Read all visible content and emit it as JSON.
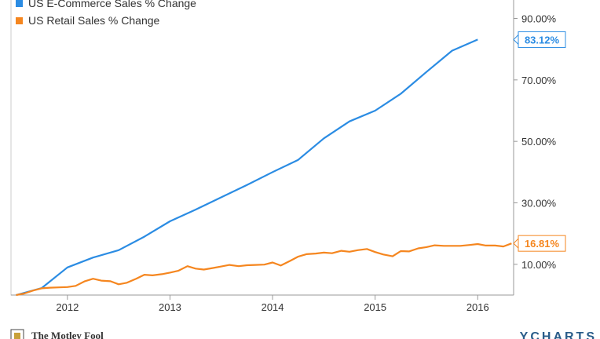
{
  "chart_data": {
    "type": "line",
    "title": "",
    "xlabel": "",
    "ylabel": "",
    "x_ticks": [
      "2012",
      "2013",
      "2014",
      "2015",
      "2016"
    ],
    "y_ticks": [
      "10.00%",
      "30.00%",
      "50.00%",
      "70.00%",
      "90.00%"
    ],
    "xlim": [
      2011.45,
      2016.35
    ],
    "ylim": [
      0,
      96
    ],
    "grid": false,
    "legend": "top-left",
    "series": [
      {
        "name": "US E-Commerce Sales % Change",
        "color": "#2b8ce3",
        "end_label": "83.12%",
        "points": [
          [
            2011.5,
            0
          ],
          [
            2011.75,
            2.3
          ],
          [
            2012.0,
            9.0
          ],
          [
            2012.25,
            12.2
          ],
          [
            2012.5,
            14.6
          ],
          [
            2012.75,
            19.0
          ],
          [
            2013.0,
            24.0
          ],
          [
            2013.25,
            27.8
          ],
          [
            2013.5,
            31.8
          ],
          [
            2013.75,
            35.8
          ],
          [
            2014.0,
            40.0
          ],
          [
            2014.25,
            44.0
          ],
          [
            2014.5,
            51.0
          ],
          [
            2014.75,
            56.5
          ],
          [
            2015.0,
            60.0
          ],
          [
            2015.25,
            65.5
          ],
          [
            2015.5,
            72.6
          ],
          [
            2015.75,
            79.5
          ],
          [
            2016.0,
            83.12
          ]
        ]
      },
      {
        "name": "US Retail Sales % Change",
        "color": "#f5861f",
        "end_label": "16.81%",
        "points": [
          [
            2011.5,
            0
          ],
          [
            2011.58,
            0.5
          ],
          [
            2011.67,
            1.5
          ],
          [
            2011.75,
            2.2
          ],
          [
            2011.83,
            2.4
          ],
          [
            2011.92,
            2.5
          ],
          [
            2012.0,
            2.6
          ],
          [
            2012.08,
            3.0
          ],
          [
            2012.17,
            4.5
          ],
          [
            2012.25,
            5.3
          ],
          [
            2012.33,
            4.7
          ],
          [
            2012.42,
            4.5
          ],
          [
            2012.5,
            3.5
          ],
          [
            2012.58,
            4.0
          ],
          [
            2012.67,
            5.3
          ],
          [
            2012.75,
            6.6
          ],
          [
            2012.83,
            6.4
          ],
          [
            2012.92,
            6.8
          ],
          [
            2013.0,
            7.3
          ],
          [
            2013.08,
            7.9
          ],
          [
            2013.17,
            9.4
          ],
          [
            2013.25,
            8.6
          ],
          [
            2013.33,
            8.3
          ],
          [
            2013.42,
            8.8
          ],
          [
            2013.5,
            9.3
          ],
          [
            2013.58,
            9.8
          ],
          [
            2013.67,
            9.4
          ],
          [
            2013.75,
            9.7
          ],
          [
            2013.83,
            9.8
          ],
          [
            2013.92,
            9.9
          ],
          [
            2014.0,
            10.6
          ],
          [
            2014.08,
            9.6
          ],
          [
            2014.17,
            11.1
          ],
          [
            2014.25,
            12.5
          ],
          [
            2014.33,
            13.3
          ],
          [
            2014.42,
            13.5
          ],
          [
            2014.5,
            13.8
          ],
          [
            2014.58,
            13.6
          ],
          [
            2014.67,
            14.4
          ],
          [
            2014.75,
            14.1
          ],
          [
            2014.83,
            14.6
          ],
          [
            2014.92,
            15.0
          ],
          [
            2015.0,
            14.0
          ],
          [
            2015.08,
            13.2
          ],
          [
            2015.17,
            12.6
          ],
          [
            2015.25,
            14.3
          ],
          [
            2015.33,
            14.2
          ],
          [
            2015.42,
            15.2
          ],
          [
            2015.5,
            15.6
          ],
          [
            2015.58,
            16.2
          ],
          [
            2015.67,
            16.0
          ],
          [
            2015.75,
            16.0
          ],
          [
            2015.83,
            16.0
          ],
          [
            2015.92,
            16.3
          ],
          [
            2016.0,
            16.6
          ],
          [
            2016.08,
            16.1
          ],
          [
            2016.17,
            16.1
          ],
          [
            2016.25,
            15.8
          ],
          [
            2016.33,
            16.81
          ]
        ]
      }
    ]
  },
  "footer": {
    "left": "The Motley Fool",
    "right": "YCHARTS"
  }
}
